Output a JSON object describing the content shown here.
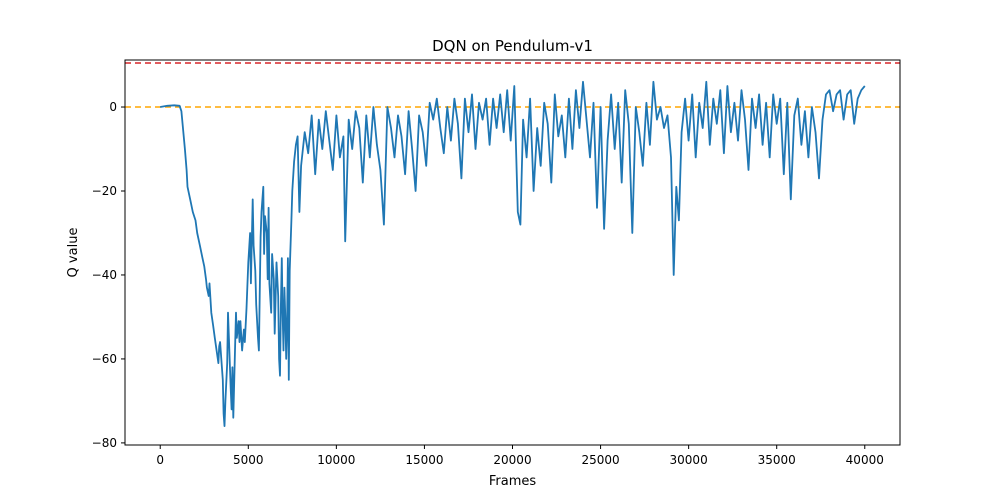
{
  "chart_data": {
    "type": "line",
    "title": "DQN on Pendulum-v1",
    "xlabel": "Frames",
    "ylabel": "Q value",
    "xlim": [
      -2000,
      42000
    ],
    "ylim": [
      -80.5,
      11.2
    ],
    "xticks": [
      0,
      5000,
      10000,
      15000,
      20000,
      25000,
      30000,
      35000,
      40000
    ],
    "yticks": [
      -80,
      -60,
      -40,
      -20,
      0
    ],
    "grid": false,
    "legend": "none",
    "reference_lines": [
      {
        "y": 10.5,
        "color": "#d62728",
        "style": "dashed"
      },
      {
        "y": 0,
        "color": "#ffa500",
        "style": "dashed"
      }
    ],
    "series": [
      {
        "color": "#1f77b4",
        "points": [
          [
            0,
            0
          ],
          [
            400,
            0.3
          ],
          [
            800,
            0.4
          ],
          [
            1100,
            0.3
          ],
          [
            1200,
            -1
          ],
          [
            1400,
            -10
          ],
          [
            1500,
            -15
          ],
          [
            1550,
            -19
          ],
          [
            1700,
            -22
          ],
          [
            1850,
            -25
          ],
          [
            2000,
            -27
          ],
          [
            2100,
            -30
          ],
          [
            2250,
            -33
          ],
          [
            2400,
            -36
          ],
          [
            2500,
            -38
          ],
          [
            2600,
            -41
          ],
          [
            2650,
            -43
          ],
          [
            2750,
            -45
          ],
          [
            2800,
            -42
          ],
          [
            2900,
            -49
          ],
          [
            3000,
            -52
          ],
          [
            3100,
            -55
          ],
          [
            3200,
            -58
          ],
          [
            3300,
            -61
          ],
          [
            3350,
            -57
          ],
          [
            3400,
            -56
          ],
          [
            3500,
            -62
          ],
          [
            3550,
            -65
          ],
          [
            3600,
            -73
          ],
          [
            3650,
            -76
          ],
          [
            3700,
            -70
          ],
          [
            3800,
            -61
          ],
          [
            3850,
            -49
          ],
          [
            3900,
            -55
          ],
          [
            4000,
            -67
          ],
          [
            4050,
            -72
          ],
          [
            4100,
            -62
          ],
          [
            4150,
            -74
          ],
          [
            4250,
            -57
          ],
          [
            4300,
            -49
          ],
          [
            4350,
            -55
          ],
          [
            4450,
            -51
          ],
          [
            4500,
            -56
          ],
          [
            4550,
            -51
          ],
          [
            4650,
            -58
          ],
          [
            4750,
            -53
          ],
          [
            4800,
            -56
          ],
          [
            4900,
            -48
          ],
          [
            5000,
            -37
          ],
          [
            5100,
            -30
          ],
          [
            5150,
            -42
          ],
          [
            5250,
            -22
          ],
          [
            5300,
            -33
          ],
          [
            5400,
            -39
          ],
          [
            5450,
            -47
          ],
          [
            5550,
            -55
          ],
          [
            5600,
            -58
          ],
          [
            5650,
            -45
          ],
          [
            5700,
            -31
          ],
          [
            5750,
            -25
          ],
          [
            5850,
            -19
          ],
          [
            5900,
            -35
          ],
          [
            5950,
            -26
          ],
          [
            6050,
            -30
          ],
          [
            6100,
            -41
          ],
          [
            6150,
            -24
          ],
          [
            6200,
            -42
          ],
          [
            6300,
            -49
          ],
          [
            6350,
            -35
          ],
          [
            6450,
            -41
          ],
          [
            6500,
            -54
          ],
          [
            6600,
            -37
          ],
          [
            6700,
            -45
          ],
          [
            6750,
            -60
          ],
          [
            6800,
            -64
          ],
          [
            6850,
            -47
          ],
          [
            6900,
            -36
          ],
          [
            6950,
            -49
          ],
          [
            7000,
            -58
          ],
          [
            7050,
            -43
          ],
          [
            7100,
            -50
          ],
          [
            7150,
            -60
          ],
          [
            7200,
            -53
          ],
          [
            7250,
            -36
          ],
          [
            7300,
            -65
          ],
          [
            7350,
            -39
          ],
          [
            7450,
            -27
          ],
          [
            7500,
            -20
          ],
          [
            7600,
            -13
          ],
          [
            7700,
            -9
          ],
          [
            7800,
            -7
          ],
          [
            7900,
            -25
          ],
          [
            8000,
            -14
          ],
          [
            8200,
            -6
          ],
          [
            8400,
            -11
          ],
          [
            8600,
            -2
          ],
          [
            8800,
            -16
          ],
          [
            9000,
            -3
          ],
          [
            9200,
            -10
          ],
          [
            9400,
            -1
          ],
          [
            9600,
            -8
          ],
          [
            9800,
            -15
          ],
          [
            10000,
            -2
          ],
          [
            10200,
            -12
          ],
          [
            10400,
            -7
          ],
          [
            10500,
            -32
          ],
          [
            10700,
            -3
          ],
          [
            10900,
            -10
          ],
          [
            11100,
            -1
          ],
          [
            11300,
            -5
          ],
          [
            11500,
            -18
          ],
          [
            11700,
            -2
          ],
          [
            11900,
            -12
          ],
          [
            12100,
            0
          ],
          [
            12300,
            -9
          ],
          [
            12500,
            -15
          ],
          [
            12700,
            -28
          ],
          [
            12900,
            0
          ],
          [
            13100,
            -5
          ],
          [
            13300,
            -12
          ],
          [
            13500,
            -2
          ],
          [
            13700,
            -7
          ],
          [
            13900,
            -16
          ],
          [
            14100,
            -1
          ],
          [
            14300,
            -10
          ],
          [
            14500,
            -20
          ],
          [
            14700,
            -2
          ],
          [
            14900,
            -6
          ],
          [
            15100,
            -14
          ],
          [
            15300,
            1
          ],
          [
            15500,
            -3
          ],
          [
            15700,
            2
          ],
          [
            15900,
            -5
          ],
          [
            16100,
            -11
          ],
          [
            16300,
            0
          ],
          [
            16500,
            -8
          ],
          [
            16700,
            2
          ],
          [
            16900,
            -4
          ],
          [
            17100,
            -17
          ],
          [
            17300,
            2
          ],
          [
            17500,
            -6
          ],
          [
            17700,
            3
          ],
          [
            17900,
            -10
          ],
          [
            18100,
            1
          ],
          [
            18300,
            -3
          ],
          [
            18500,
            2
          ],
          [
            18700,
            -9
          ],
          [
            18900,
            2
          ],
          [
            19100,
            -5
          ],
          [
            19300,
            3
          ],
          [
            19500,
            -6
          ],
          [
            19700,
            4
          ],
          [
            19900,
            -8
          ],
          [
            20100,
            5
          ],
          [
            20300,
            -25
          ],
          [
            20450,
            -28
          ],
          [
            20600,
            -3
          ],
          [
            20800,
            -12
          ],
          [
            21000,
            2
          ],
          [
            21200,
            -20
          ],
          [
            21400,
            -5
          ],
          [
            21600,
            -14
          ],
          [
            21800,
            1
          ],
          [
            22000,
            -4
          ],
          [
            22200,
            -18
          ],
          [
            22400,
            3
          ],
          [
            22600,
            -7
          ],
          [
            22800,
            -2
          ],
          [
            23000,
            -12
          ],
          [
            23200,
            2
          ],
          [
            23400,
            -10
          ],
          [
            23600,
            4
          ],
          [
            23800,
            -5
          ],
          [
            24000,
            6
          ],
          [
            24200,
            -3
          ],
          [
            24400,
            -12
          ],
          [
            24600,
            1
          ],
          [
            24800,
            -24
          ],
          [
            25000,
            0
          ],
          [
            25200,
            -29
          ],
          [
            25400,
            -8
          ],
          [
            25600,
            3
          ],
          [
            25800,
            -10
          ],
          [
            26000,
            1
          ],
          [
            26200,
            -18
          ],
          [
            26400,
            4
          ],
          [
            26600,
            -4
          ],
          [
            26800,
            -30
          ],
          [
            27000,
            0
          ],
          [
            27200,
            -6
          ],
          [
            27400,
            -14
          ],
          [
            27600,
            1
          ],
          [
            27800,
            -9
          ],
          [
            28000,
            6
          ],
          [
            28200,
            -3
          ],
          [
            28400,
            0
          ],
          [
            28600,
            -5
          ],
          [
            28800,
            -2
          ],
          [
            29000,
            -12
          ],
          [
            29150,
            -40
          ],
          [
            29300,
            -19
          ],
          [
            29450,
            -27
          ],
          [
            29600,
            -6
          ],
          [
            29800,
            2
          ],
          [
            30000,
            -8
          ],
          [
            30200,
            3
          ],
          [
            30400,
            -12
          ],
          [
            30600,
            1
          ],
          [
            30800,
            -5
          ],
          [
            31000,
            6
          ],
          [
            31200,
            -9
          ],
          [
            31400,
            2
          ],
          [
            31600,
            -4
          ],
          [
            31800,
            4
          ],
          [
            32000,
            -11
          ],
          [
            32200,
            5
          ],
          [
            32400,
            -6
          ],
          [
            32600,
            1
          ],
          [
            32800,
            -8
          ],
          [
            33000,
            4
          ],
          [
            33200,
            -3
          ],
          [
            33400,
            -15
          ],
          [
            33600,
            2
          ],
          [
            33800,
            -5
          ],
          [
            34000,
            3
          ],
          [
            34200,
            -9
          ],
          [
            34400,
            1
          ],
          [
            34600,
            -12
          ],
          [
            34800,
            3
          ],
          [
            35000,
            -4
          ],
          [
            35200,
            2
          ],
          [
            35400,
            -16
          ],
          [
            35600,
            1
          ],
          [
            35800,
            -22
          ],
          [
            36000,
            -2
          ],
          [
            36200,
            2
          ],
          [
            36400,
            -9
          ],
          [
            36600,
            -1
          ],
          [
            36800,
            -12
          ],
          [
            37000,
            0
          ],
          [
            37200,
            -6
          ],
          [
            37400,
            -17
          ],
          [
            37600,
            -3
          ],
          [
            37800,
            3
          ],
          [
            38000,
            4
          ],
          [
            38200,
            -1
          ],
          [
            38400,
            3
          ],
          [
            38600,
            4
          ],
          [
            38800,
            -3
          ],
          [
            39000,
            3
          ],
          [
            39200,
            4
          ],
          [
            39400,
            -4
          ],
          [
            39600,
            2
          ],
          [
            39800,
            4
          ],
          [
            40000,
            5
          ]
        ]
      }
    ]
  }
}
